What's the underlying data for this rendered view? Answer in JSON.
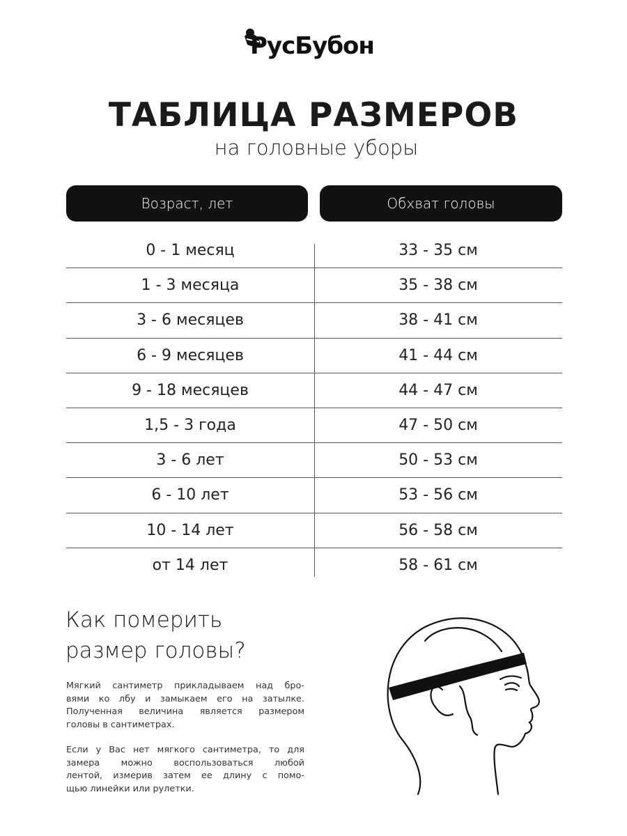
{
  "brand": {
    "logo_text": "РусБубон"
  },
  "header": {
    "title": "ТАБЛИЦА РАЗМЕРОВ",
    "subtitle": "на головные уборы"
  },
  "table": {
    "columns": [
      "Возраст, лет",
      "Обхват головы"
    ],
    "rows": [
      [
        "0 - 1 месяц",
        "33 - 35 см"
      ],
      [
        "1 - 3 месяца",
        "35 - 38 см"
      ],
      [
        "3 - 6 месяцев",
        "38 - 41 см"
      ],
      [
        "6 - 9 месяцев",
        "41 - 44 см"
      ],
      [
        "9 - 18 месяцев",
        "44 - 47 см"
      ],
      [
        "1,5 - 3 года",
        "47 - 50 см"
      ],
      [
        "3 - 6 лет",
        "50 - 53 см"
      ],
      [
        "6 - 10 лет",
        "53 - 56 см"
      ],
      [
        "10 - 14 лет",
        "56 - 58 см"
      ],
      [
        "от 14 лет",
        "58 - 61 см"
      ]
    ]
  },
  "howto": {
    "heading_lines": [
      "Как померить",
      "размер головы?"
    ],
    "paragraph1": [
      "Мягкий сантиметр прикладываем над бро-",
      "вями ко лбу и замыкаем его на затылке.",
      "Полученная величина является размером",
      "головы в сантиметрах."
    ],
    "paragraph2": [
      "Если у Вас нет мягкого сантиметра, то для",
      "замера можно воспользоваться любой",
      "лентой, измерив затем ее длину с помо-",
      "щью линейки или рулетки."
    ]
  },
  "colors": {
    "pill": "#111111",
    "text": "#1a1a1a",
    "rule": "#555555"
  }
}
